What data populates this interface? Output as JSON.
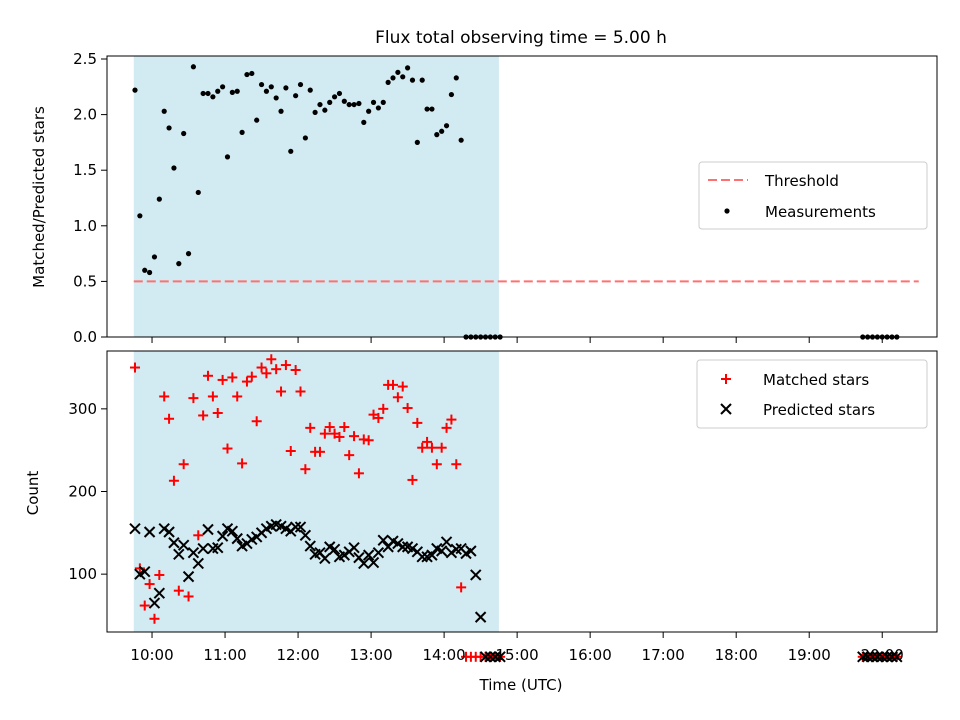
{
  "title": "Flux total observing time = 5.00 h",
  "chart_data": [
    {
      "type": "scatter",
      "ylabel": "Matched/Predicted stars",
      "xlabel": "",
      "x_unit": "minutes since 00:00 UTC",
      "xlim": [
        563,
        1245
      ],
      "ylim": [
        0,
        2.5
      ],
      "y_ticks": [
        "0.0",
        "0.5",
        "1.0",
        "1.5",
        "2.0",
        "2.5"
      ],
      "y_tick_values": [
        0,
        0.5,
        1.0,
        1.5,
        2.0,
        2.5
      ],
      "grid": false,
      "legend_position": "center-right",
      "shaded_span": {
        "x_from": 585,
        "x_to": 885,
        "color": "#add8e6"
      },
      "threshold": {
        "name": "Threshold",
        "y": 0.5,
        "x_from": 585,
        "x_to": 1230,
        "color": "#ff7070",
        "style": "dashed"
      },
      "series": [
        {
          "name": "Measurements",
          "marker": "dot",
          "color": "#000000",
          "x": [
            586,
            590,
            594,
            598,
            602,
            606,
            610,
            614,
            618,
            622,
            626,
            630,
            634,
            638,
            642,
            646,
            650,
            654,
            658,
            662,
            666,
            670,
            674,
            678,
            682,
            686,
            690,
            694,
            698,
            702,
            706,
            710,
            714,
            718,
            722,
            726,
            730,
            734,
            738,
            742,
            746,
            750,
            754,
            758,
            762,
            766,
            770,
            774,
            778,
            782,
            786,
            790,
            794,
            798,
            802,
            806,
            810,
            814,
            818,
            822,
            826,
            830,
            834,
            838,
            842,
            846,
            850,
            854,
            858,
            862,
            866,
            870,
            874,
            878,
            882,
            886,
            1184,
            1188,
            1192,
            1196,
            1200,
            1204,
            1208,
            1212
          ],
          "y": [
            2.22,
            1.09,
            0.6,
            0.58,
            0.72,
            1.24,
            2.03,
            1.88,
            1.52,
            0.66,
            1.83,
            0.75,
            2.43,
            1.3,
            2.19,
            2.19,
            2.16,
            2.21,
            2.25,
            1.62,
            2.2,
            2.21,
            1.84,
            2.36,
            2.37,
            1.95,
            2.27,
            2.21,
            2.25,
            2.15,
            2.03,
            2.24,
            1.67,
            2.17,
            2.27,
            1.79,
            2.22,
            2.02,
            2.09,
            2.04,
            2.11,
            2.16,
            2.19,
            2.12,
            2.09,
            2.09,
            2.1,
            1.93,
            2.03,
            2.11,
            2.06,
            2.11,
            2.29,
            2.33,
            2.38,
            2.34,
            2.42,
            2.31,
            1.75,
            2.31,
            2.05,
            2.05,
            1.82,
            1.85,
            1.9,
            2.18,
            2.33,
            1.77,
            0,
            0,
            0,
            0,
            0,
            0,
            0,
            0,
            0,
            0,
            0,
            0,
            0,
            0,
            0,
            0
          ]
        }
      ]
    },
    {
      "type": "scatter",
      "ylabel": "Count",
      "xlabel": "Time (UTC)",
      "x_unit": "minutes since 00:00 UTC",
      "xlim": [
        563,
        1245
      ],
      "ylim": [
        30,
        370
      ],
      "y_ticks": [
        "100",
        "200",
        "300"
      ],
      "y_tick_values": [
        100,
        200,
        300
      ],
      "x_ticks": [
        "10:00",
        "11:00",
        "12:00",
        "13:00",
        "14:00",
        "15:00",
        "16:00",
        "17:00",
        "18:00",
        "19:00",
        "20:00"
      ],
      "x_tick_values": [
        600,
        660,
        720,
        780,
        840,
        900,
        960,
        1020,
        1080,
        1140,
        1200
      ],
      "grid": false,
      "legend_position": "top-right",
      "shaded_span": {
        "x_from": 585,
        "x_to": 885,
        "color": "#add8e6"
      },
      "series": [
        {
          "name": "Matched stars",
          "marker": "plus",
          "color": "#ff0000",
          "x": [
            586,
            590,
            594,
            598,
            602,
            606,
            610,
            614,
            618,
            622,
            626,
            630,
            634,
            638,
            642,
            646,
            650,
            654,
            658,
            662,
            666,
            670,
            674,
            678,
            682,
            686,
            690,
            694,
            698,
            702,
            706,
            710,
            714,
            718,
            722,
            726,
            730,
            734,
            738,
            742,
            746,
            750,
            754,
            758,
            762,
            766,
            770,
            774,
            778,
            782,
            786,
            790,
            794,
            798,
            802,
            806,
            810,
            814,
            818,
            822,
            826,
            830,
            834,
            838,
            842,
            846,
            850,
            854,
            858,
            862,
            866,
            870,
            874,
            878,
            882,
            886,
            1184,
            1188,
            1192,
            1196,
            1200,
            1204,
            1208,
            1212
          ],
          "y": [
            350,
            107,
            62,
            88,
            46,
            99,
            315,
            288,
            213,
            80,
            233,
            73,
            313,
            147,
            292,
            340,
            315,
            295,
            335,
            252,
            338,
            315,
            234,
            333,
            339,
            285,
            350,
            343,
            360,
            348,
            321,
            353,
            249,
            347,
            321,
            227,
            277,
            248,
            248,
            270,
            278,
            270,
            266,
            278,
            244,
            267,
            222,
            263,
            262,
            293,
            289,
            300,
            329,
            329,
            314,
            327,
            301,
            214,
            283,
            253,
            260,
            253,
            233,
            253,
            277,
            287,
            233,
            84,
            0,
            0,
            0,
            0,
            0,
            0,
            0,
            0,
            0,
            0,
            0,
            0,
            0,
            0,
            0,
            0
          ]
        },
        {
          "name": "Predicted stars",
          "marker": "x",
          "color": "#000000",
          "x": [
            586,
            590,
            594,
            598,
            602,
            606,
            610,
            614,
            618,
            622,
            626,
            630,
            634,
            638,
            642,
            646,
            650,
            654,
            658,
            662,
            666,
            670,
            674,
            678,
            682,
            686,
            690,
            694,
            698,
            702,
            706,
            710,
            714,
            718,
            722,
            726,
            730,
            734,
            738,
            742,
            746,
            750,
            754,
            758,
            762,
            766,
            770,
            774,
            778,
            782,
            786,
            790,
            794,
            798,
            802,
            806,
            810,
            814,
            818,
            822,
            826,
            830,
            834,
            838,
            842,
            846,
            850,
            854,
            858,
            862,
            866,
            870,
            874,
            878,
            882,
            886,
            1184,
            1188,
            1192,
            1196,
            1200,
            1204,
            1208,
            1212
          ],
          "y": [
            155,
            100,
            103,
            151,
            65,
            77,
            155,
            151,
            138,
            124,
            135,
            97,
            126,
            113,
            131,
            154,
            131,
            132,
            146,
            155,
            152,
            143,
            134,
            137,
            142,
            145,
            150,
            155,
            158,
            160,
            158,
            155,
            152,
            157,
            157,
            147,
            134,
            124,
            126,
            119,
            133,
            130,
            121,
            123,
            127,
            132,
            120,
            113,
            123,
            114,
            126,
            141,
            133,
            140,
            137,
            133,
            133,
            131,
            127,
            121,
            121,
            123,
            131,
            128,
            139,
            126,
            130,
            131,
            125,
            128,
            99,
            48,
            0,
            0,
            0,
            0,
            0,
            0,
            0,
            0,
            0,
            0,
            0,
            0
          ]
        }
      ]
    }
  ]
}
